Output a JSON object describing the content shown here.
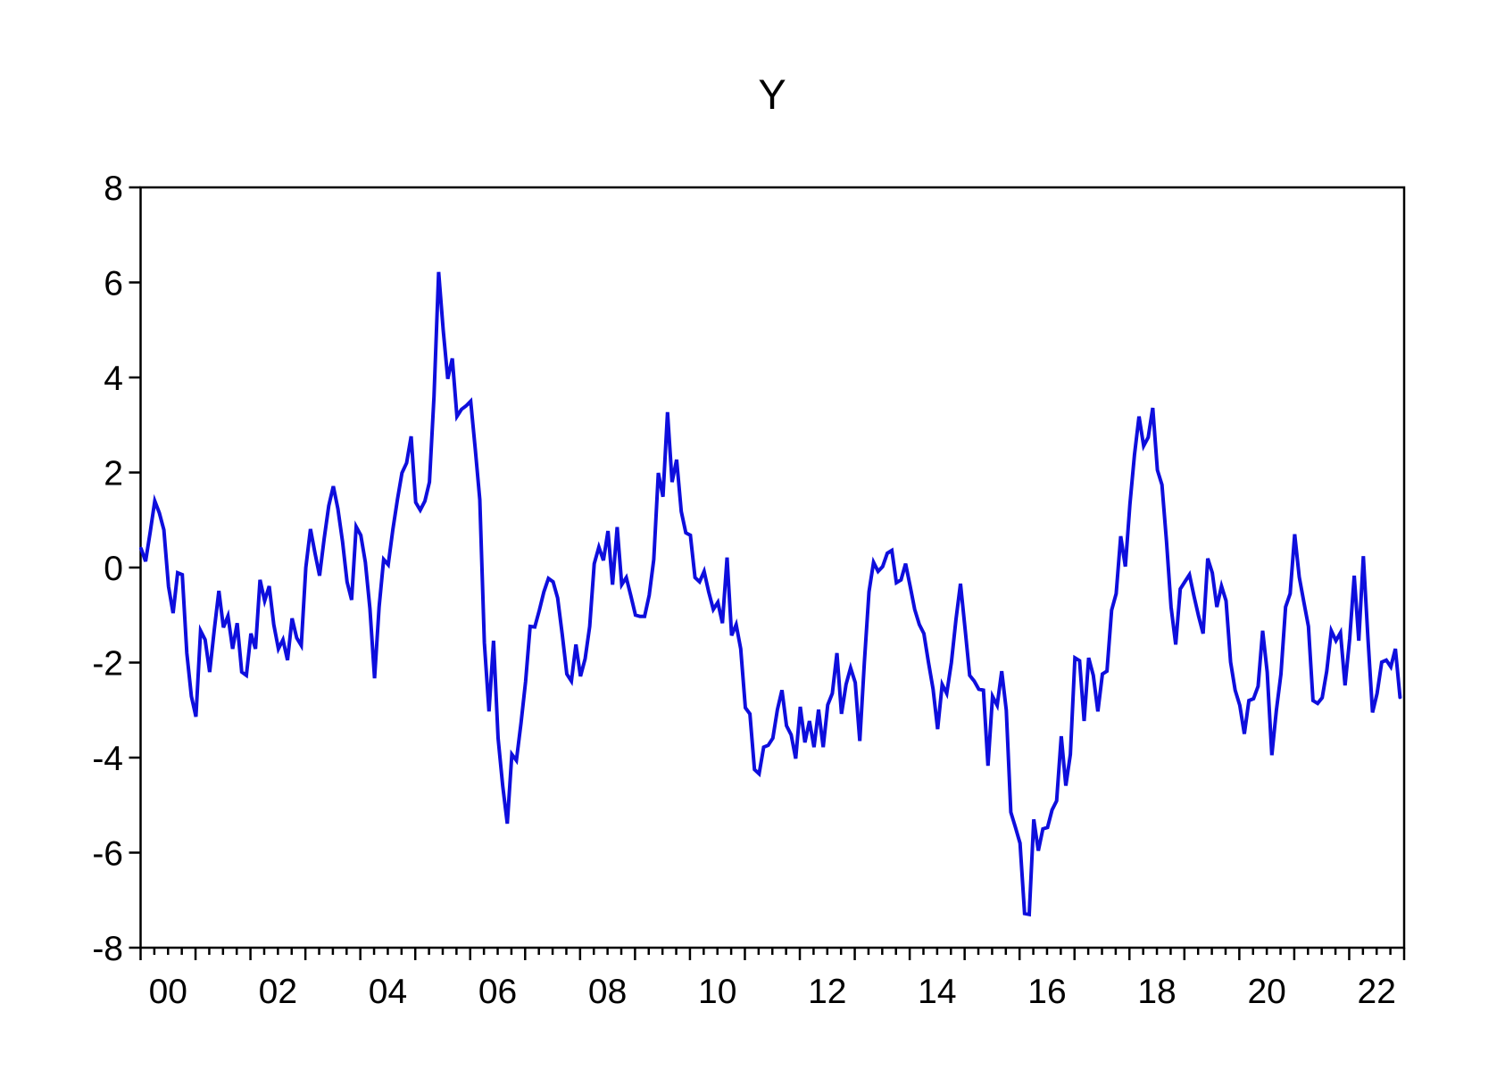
{
  "chart_data": {
    "type": "line",
    "title": "Y",
    "xlabel": "",
    "ylabel": "",
    "ylim": [
      -8,
      8
    ],
    "yticks": [
      8,
      6,
      4,
      2,
      0,
      -2,
      -4,
      -6,
      -8
    ],
    "x_axis": {
      "start_year": 2000,
      "end_year": 2023,
      "minor_ticks_per_year": 4,
      "labels": [
        "00",
        "02",
        "04",
        "06",
        "08",
        "10",
        "12",
        "14",
        "16",
        "18",
        "20",
        "22"
      ],
      "label_years": [
        2000,
        2002,
        2004,
        2006,
        2008,
        2010,
        2012,
        2014,
        2016,
        2018,
        2020,
        2022
      ]
    },
    "grid": false,
    "legend_position": "none",
    "line_color": "#0e0edd",
    "axis_color": "#000000",
    "background_color": "#ffffff",
    "series": [
      {
        "name": "Y",
        "frequency": "monthly",
        "start": "2000M01",
        "end": "2022M12",
        "values": [
          0.4,
          0.13,
          0.75,
          1.4,
          1.15,
          0.79,
          -0.4,
          -0.96,
          -0.11,
          -0.15,
          -1.8,
          -2.71,
          -3.14,
          -1.33,
          -1.52,
          -2.2,
          -1.3,
          -0.49,
          -1.26,
          -1.02,
          -1.71,
          -1.17,
          -2.2,
          -2.27,
          -1.39,
          -1.71,
          -0.26,
          -0.7,
          -0.39,
          -1.2,
          -1.71,
          -1.52,
          -1.95,
          -1.07,
          -1.48,
          -1.64,
          0.0,
          0.81,
          0.3,
          -0.17,
          0.6,
          1.3,
          1.71,
          1.24,
          0.55,
          -0.3,
          -0.68,
          0.86,
          0.68,
          0.11,
          -0.86,
          -2.33,
          -0.83,
          0.17,
          0.06,
          0.8,
          1.43,
          1.99,
          2.2,
          2.76,
          1.37,
          1.21,
          1.4,
          1.8,
          3.6,
          6.22,
          5.0,
          3.97,
          4.4,
          3.18,
          3.33,
          3.4,
          3.5,
          2.5,
          1.43,
          -1.58,
          -3.03,
          -1.54,
          -3.59,
          -4.6,
          -5.39,
          -3.93,
          -4.06,
          -3.27,
          -2.4,
          -1.24,
          -1.25,
          -0.9,
          -0.51,
          -0.23,
          -0.3,
          -0.64,
          -1.4,
          -2.24,
          -2.39,
          -1.62,
          -2.29,
          -1.92,
          -1.24,
          0.08,
          0.43,
          0.15,
          0.77,
          -0.36,
          0.85,
          -0.36,
          -0.21,
          -0.6,
          -1.0,
          -1.03,
          -1.03,
          -0.58,
          0.17,
          1.99,
          1.49,
          3.27,
          1.8,
          2.27,
          1.18,
          0.73,
          0.68,
          -0.21,
          -0.3,
          -0.08,
          -0.51,
          -0.88,
          -0.73,
          -1.17,
          0.21,
          -1.43,
          -1.2,
          -1.71,
          -2.95,
          -3.08,
          -4.25,
          -4.34,
          -3.78,
          -3.74,
          -3.59,
          -2.99,
          -2.58,
          -3.33,
          -3.52,
          -4.02,
          -2.93,
          -3.68,
          -3.23,
          -3.78,
          -2.99,
          -3.78,
          -2.89,
          -2.65,
          -1.8,
          -3.08,
          -2.46,
          -2.11,
          -2.42,
          -3.65,
          -2.0,
          -0.51,
          0.11,
          -0.08,
          0.02,
          0.3,
          0.36,
          -0.32,
          -0.26,
          0.08,
          -0.39,
          -0.88,
          -1.2,
          -1.39,
          -1.99,
          -2.56,
          -3.4,
          -2.46,
          -2.65,
          -2.0,
          -1.1,
          -0.34,
          -1.3,
          -2.27,
          -2.39,
          -2.56,
          -2.58,
          -4.17,
          -2.71,
          -2.9,
          -2.18,
          -3.0,
          -5.15,
          -5.47,
          -5.8,
          -7.28,
          -7.3,
          -5.3,
          -5.96,
          -5.5,
          -5.47,
          -5.1,
          -4.91,
          -3.55,
          -4.59,
          -3.93,
          -1.9,
          -1.96,
          -3.23,
          -1.9,
          -2.27,
          -3.03,
          -2.24,
          -2.18,
          -0.9,
          -0.55,
          0.66,
          0.02,
          1.33,
          2.37,
          3.18,
          2.56,
          2.74,
          3.36,
          2.05,
          1.74,
          0.55,
          -0.83,
          -1.62,
          -0.45,
          -0.3,
          -0.15,
          -0.6,
          -1.02,
          -1.39,
          0.19,
          -0.11,
          -0.83,
          -0.39,
          -0.7,
          -1.99,
          -2.58,
          -2.9,
          -3.5,
          -2.8,
          -2.76,
          -2.5,
          -1.33,
          -2.2,
          -3.95,
          -3.0,
          -2.24,
          -0.83,
          -0.55,
          0.7,
          -0.2,
          -0.73,
          -1.24,
          -2.8,
          -2.86,
          -2.74,
          -2.18,
          -1.33,
          -1.54,
          -1.37,
          -2.48,
          -1.5,
          -0.17,
          -1.54,
          0.24,
          -1.5,
          -3.05,
          -2.65,
          -1.99,
          -1.95,
          -2.09,
          -1.71,
          -2.73
        ]
      }
    ]
  }
}
